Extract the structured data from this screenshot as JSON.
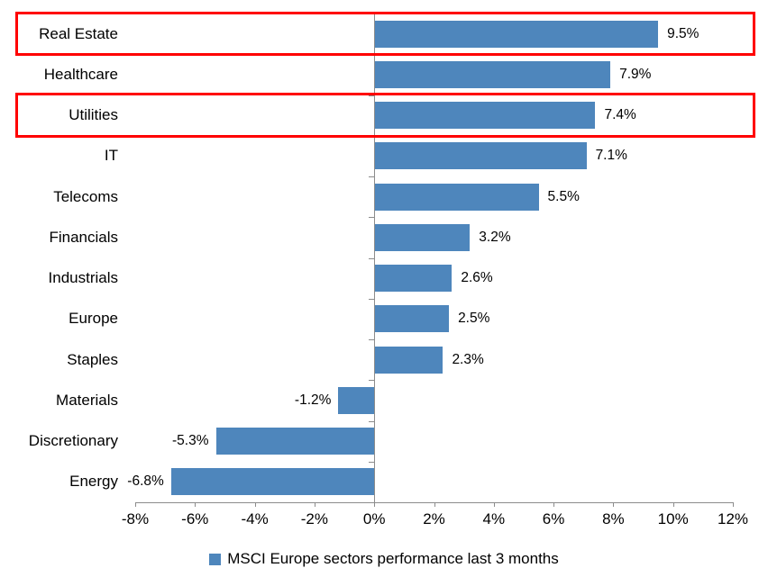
{
  "chart_data": {
    "type": "bar",
    "orientation": "horizontal",
    "title": "",
    "legend": "MSCI Europe sectors performance last 3 months",
    "legend_position": "bottom",
    "categories": [
      "Real Estate",
      "Healthcare",
      "Utilities",
      "IT",
      "Telecoms",
      "Financials",
      "Industrials",
      "Europe",
      "Staples",
      "Materials",
      "Discretionary",
      "Energy"
    ],
    "values": [
      9.5,
      7.9,
      7.4,
      7.1,
      5.5,
      3.2,
      2.6,
      2.5,
      2.3,
      -1.2,
      -5.3,
      -6.8
    ],
    "value_labels": [
      "9.5%",
      "7.9%",
      "7.4%",
      "7.1%",
      "5.5%",
      "3.2%",
      "2.6%",
      "2.5%",
      "2.3%",
      "-1.2%",
      "-5.3%",
      "-6.8%"
    ],
    "xlim": [
      -8,
      12
    ],
    "x_ticks": [
      {
        "value": -8,
        "label": "-8%"
      },
      {
        "value": -6,
        "label": "-6%"
      },
      {
        "value": -4,
        "label": "-4%"
      },
      {
        "value": -2,
        "label": "-2%"
      },
      {
        "value": 0,
        "label": "0%"
      },
      {
        "value": 2,
        "label": "2%"
      },
      {
        "value": 4,
        "label": "4%"
      },
      {
        "value": 6,
        "label": "6%"
      },
      {
        "value": 8,
        "label": "8%"
      },
      {
        "value": 10,
        "label": "10%"
      },
      {
        "value": 12,
        "label": "12%"
      }
    ],
    "grid": false,
    "bar_color": "#4E86BC",
    "axis_color": "#8C8C8C",
    "text_color": "#000000",
    "highlight_box_color": "#FF0000",
    "highlighted_categories": [
      "Real Estate",
      "Utilities"
    ]
  }
}
